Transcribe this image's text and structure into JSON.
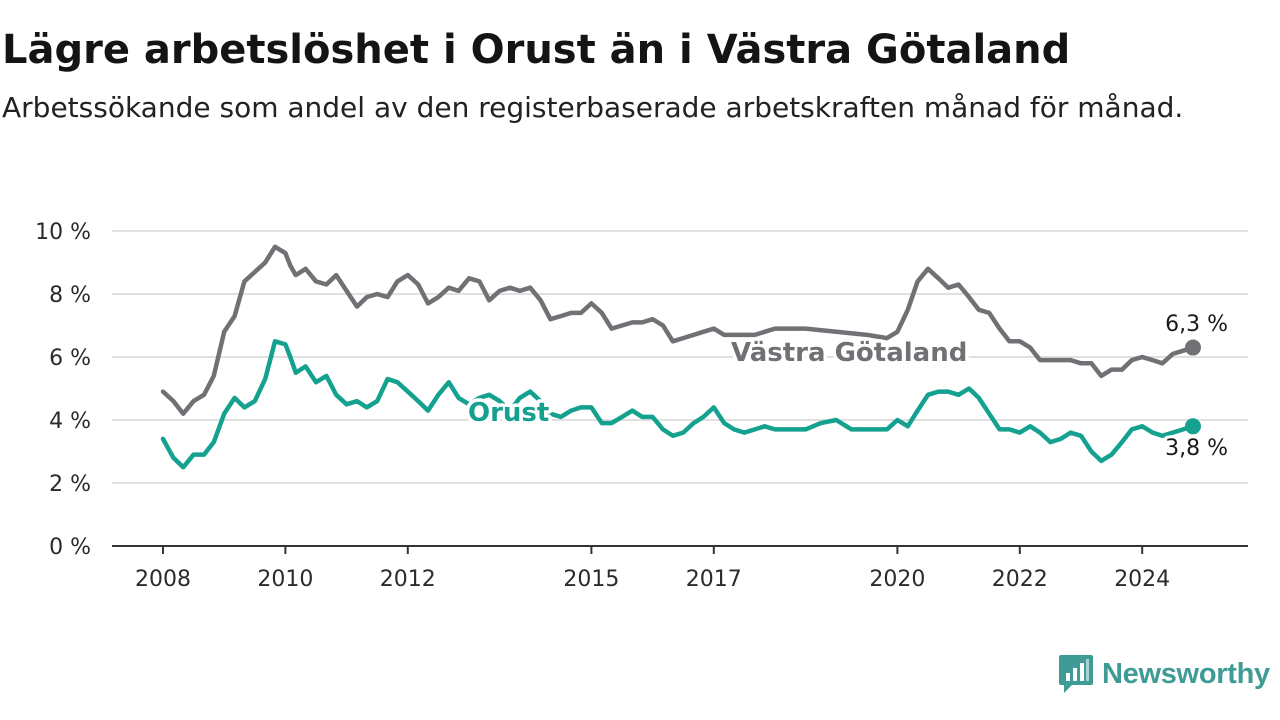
{
  "header": {
    "title": "Lägre arbetslöshet i Orust än i Västra Götaland",
    "subtitle": "Arbetssökande som andel av den registerbaserade arbetskraften månad för månad."
  },
  "brand": {
    "name": "Newsworthy",
    "icon": "newsworthy-logo-icon",
    "color": "#3f9b96"
  },
  "chart_data": {
    "type": "line",
    "xlim": [
      2008,
      2025.8
    ],
    "ylim": [
      0,
      10
    ],
    "yticks": [
      0,
      2,
      4,
      6,
      8,
      10
    ],
    "ytick_labels": [
      "0 %",
      "2 %",
      "4 %",
      "6 %",
      "8 %",
      "10 %"
    ],
    "xticks": [
      2008,
      2010,
      2012,
      2015,
      2017,
      2020,
      2022,
      2024
    ],
    "xtick_labels": [
      "2008",
      "2010",
      "2012",
      "2015",
      "2017",
      "2020",
      "2022",
      "2024"
    ],
    "grid": true,
    "legend": "inline labels",
    "series": [
      {
        "name": "Västra Götaland",
        "color": "#707075",
        "end_label": "6,3 %",
        "x": [
          2008.0,
          2008.17,
          2008.33,
          2008.5,
          2008.67,
          2008.83,
          2009.0,
          2009.17,
          2009.33,
          2009.5,
          2009.67,
          2009.83,
          2010.0,
          2010.08,
          2010.17,
          2010.33,
          2010.5,
          2010.67,
          2010.83,
          2011.0,
          2011.17,
          2011.33,
          2011.5,
          2011.67,
          2011.83,
          2012.0,
          2012.17,
          2012.33,
          2012.5,
          2012.67,
          2012.83,
          2013.0,
          2013.17,
          2013.33,
          2013.5,
          2013.67,
          2013.83,
          2014.0,
          2014.17,
          2014.33,
          2014.5,
          2014.67,
          2014.83,
          2015.0,
          2015.17,
          2015.33,
          2015.5,
          2015.67,
          2015.83,
          2016.0,
          2016.17,
          2016.33,
          2016.5,
          2016.67,
          2016.83,
          2017.0,
          2017.17,
          2017.33,
          2017.5,
          2017.67,
          2017.83,
          2018.0,
          2018.5,
          2019.0,
          2019.5,
          2019.83,
          2020.0,
          2020.17,
          2020.33,
          2020.5,
          2020.67,
          2020.83,
          2021.0,
          2021.17,
          2021.33,
          2021.5,
          2021.67,
          2021.83,
          2022.0,
          2022.17,
          2022.33,
          2022.5,
          2022.67,
          2022.83,
          2023.0,
          2023.17,
          2023.33,
          2023.5,
          2023.67,
          2023.83,
          2024.0,
          2024.17,
          2024.33,
          2024.5,
          2024.67,
          2024.83
        ],
        "y": [
          4.9,
          4.6,
          4.2,
          4.6,
          4.8,
          5.4,
          6.8,
          7.3,
          8.4,
          8.7,
          9.0,
          9.5,
          9.3,
          8.9,
          8.6,
          8.8,
          8.4,
          8.3,
          8.6,
          8.1,
          7.6,
          7.9,
          8.0,
          7.9,
          8.4,
          8.6,
          8.3,
          7.7,
          7.9,
          8.2,
          8.1,
          8.5,
          8.4,
          7.8,
          8.1,
          8.2,
          8.1,
          8.2,
          7.8,
          7.2,
          7.3,
          7.4,
          7.4,
          7.7,
          7.4,
          6.9,
          7.0,
          7.1,
          7.1,
          7.2,
          7.0,
          6.5,
          6.6,
          6.7,
          6.8,
          6.9,
          6.7,
          6.7,
          6.7,
          6.7,
          6.8,
          6.9,
          6.9,
          6.8,
          6.7,
          6.6,
          6.8,
          7.5,
          8.4,
          8.8,
          8.5,
          8.2,
          8.3,
          7.9,
          7.5,
          7.4,
          6.9,
          6.5,
          6.5,
          6.3,
          5.9,
          5.9,
          5.9,
          5.9,
          5.8,
          5.8,
          5.4,
          5.6,
          5.6,
          5.9,
          6.0,
          5.9,
          5.8,
          6.1,
          6.2,
          6.3
        ]
      },
      {
        "name": "Orust",
        "color": "#15a18f",
        "end_label": "3,8 %",
        "x": [
          2008.0,
          2008.17,
          2008.33,
          2008.5,
          2008.67,
          2008.83,
          2009.0,
          2009.17,
          2009.33,
          2009.5,
          2009.67,
          2009.83,
          2010.0,
          2010.08,
          2010.17,
          2010.33,
          2010.5,
          2010.67,
          2010.83,
          2011.0,
          2011.17,
          2011.33,
          2011.5,
          2011.67,
          2011.83,
          2012.0,
          2012.17,
          2012.33,
          2012.5,
          2012.67,
          2012.83,
          2013.0,
          2013.17,
          2013.33,
          2013.5,
          2013.67,
          2013.83,
          2014.0,
          2014.17,
          2014.33,
          2014.5,
          2014.67,
          2014.83,
          2015.0,
          2015.17,
          2015.33,
          2015.5,
          2015.67,
          2015.83,
          2016.0,
          2016.17,
          2016.33,
          2016.5,
          2016.67,
          2016.83,
          2017.0,
          2017.17,
          2017.33,
          2017.5,
          2017.67,
          2017.83,
          2018.0,
          2018.25,
          2018.5,
          2018.75,
          2019.0,
          2019.25,
          2019.5,
          2019.83,
          2020.0,
          2020.17,
          2020.33,
          2020.5,
          2020.67,
          2020.83,
          2021.0,
          2021.17,
          2021.33,
          2021.5,
          2021.67,
          2021.83,
          2022.0,
          2022.17,
          2022.33,
          2022.5,
          2022.67,
          2022.83,
          2023.0,
          2023.17,
          2023.33,
          2023.5,
          2023.67,
          2023.83,
          2024.0,
          2024.17,
          2024.33,
          2024.5,
          2024.67,
          2024.83
        ],
        "y": [
          3.4,
          2.8,
          2.5,
          2.9,
          2.9,
          3.3,
          4.2,
          4.7,
          4.4,
          4.6,
          5.3,
          6.5,
          6.4,
          6.0,
          5.5,
          5.7,
          5.2,
          5.4,
          4.8,
          4.5,
          4.6,
          4.4,
          4.6,
          5.3,
          5.2,
          4.9,
          4.6,
          4.3,
          4.8,
          5.2,
          4.7,
          4.5,
          4.7,
          4.8,
          4.6,
          4.3,
          4.7,
          4.9,
          4.6,
          4.2,
          4.1,
          4.3,
          4.4,
          4.4,
          3.9,
          3.9,
          4.1,
          4.3,
          4.1,
          4.1,
          3.7,
          3.5,
          3.6,
          3.9,
          4.1,
          4.4,
          3.9,
          3.7,
          3.6,
          3.7,
          3.8,
          3.7,
          3.7,
          3.7,
          3.9,
          4.0,
          3.7,
          3.7,
          3.7,
          4.0,
          3.8,
          4.3,
          4.8,
          4.9,
          4.9,
          4.8,
          5.0,
          4.7,
          4.2,
          3.7,
          3.7,
          3.6,
          3.8,
          3.6,
          3.3,
          3.4,
          3.6,
          3.5,
          3.0,
          2.7,
          2.9,
          3.3,
          3.7,
          3.8,
          3.6,
          3.5,
          3.6,
          3.7,
          3.8
        ]
      }
    ]
  }
}
